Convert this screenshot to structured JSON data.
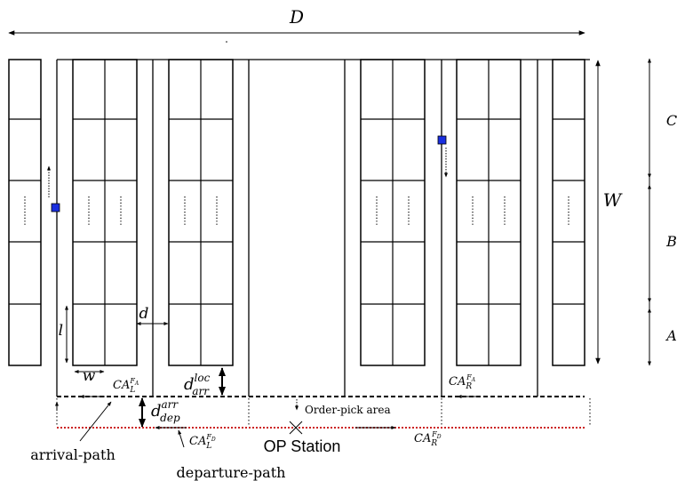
{
  "labels": {
    "D": "D",
    "W": "W",
    "C": "C",
    "B": "B",
    "A": "A",
    "d": "d",
    "l": "l",
    "w": "w",
    "d_arr_loc": {
      "base": "d",
      "sup": "loc",
      "sub": "arr"
    },
    "d_dep_arr": {
      "base": "d",
      "sup": "arr",
      "sub": "dep"
    },
    "CA_L_FA": {
      "base": "CA",
      "sub": "L",
      "sup": "F",
      "supsub": "A"
    },
    "CA_R_FA": {
      "base": "CA",
      "sub": "R",
      "sup": "F",
      "supsub": "A"
    },
    "CA_L_FD": {
      "base": "CA",
      "sub": "L",
      "sup": "F",
      "supsub": "D"
    },
    "CA_R_FD": {
      "base": "CA",
      "sub": "R",
      "sup": "F",
      "supsub": "D"
    },
    "order_pick_area": "Order-pick area",
    "op_station": "OP Station",
    "arrival_path": "arrival-path",
    "departure_path": "departure-path"
  },
  "colors": {
    "line": "#000000",
    "departure_path": "#cc2222",
    "vehicle": "#1a2fe0"
  },
  "vehicle_directions": [
    "up",
    "down"
  ]
}
